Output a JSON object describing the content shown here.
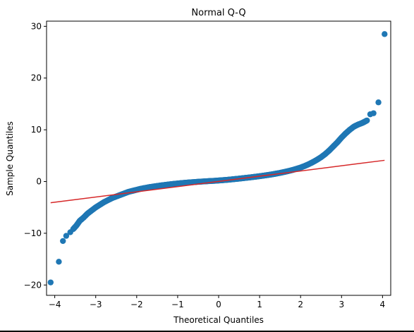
{
  "chart_data": {
    "type": "scatter",
    "title": "Normal Q-Q",
    "xlabel": "Theoretical Quantiles",
    "ylabel": "Sample Quantiles",
    "xlim": [
      -4.2,
      4.2
    ],
    "ylim": [
      -22,
      31
    ],
    "xticks": [
      -4,
      -3,
      -2,
      -1,
      0,
      1,
      2,
      3,
      4
    ],
    "yticks": [
      -20,
      -10,
      0,
      10,
      20,
      30
    ],
    "xtick_labels": [
      "−4",
      "−3",
      "−2",
      "−1",
      "0",
      "1",
      "2",
      "3",
      "4"
    ],
    "ytick_labels": [
      "−20",
      "−10",
      "0",
      "10",
      "20",
      "30"
    ],
    "grid": false,
    "colors": {
      "points": "#1f77b4",
      "line": "#d62728"
    },
    "reference_line": {
      "x": [
        -4.1,
        4.05
      ],
      "y": [
        -4.1,
        4.1
      ]
    },
    "series": [
      {
        "x": [
          -4.1,
          -3.9,
          -3.8,
          -3.72,
          -3.62,
          -3.55,
          -3.47,
          -3.39,
          -3.3,
          -3.2,
          -3.1,
          -3.0,
          -2.9,
          -2.8,
          -2.7,
          -2.6,
          -2.5,
          -2.4,
          -2.3,
          -2.2,
          -2.1,
          -2.0,
          -1.9,
          -1.8,
          -1.7,
          -1.6,
          -1.5,
          -1.4,
          -1.3,
          -1.2,
          -1.1,
          -1.0,
          -0.9,
          -0.8,
          -0.7,
          -0.6,
          -0.5,
          -0.4,
          -0.3,
          -0.2,
          -0.1,
          0.0,
          0.1,
          0.2,
          0.3,
          0.4,
          0.5,
          0.6,
          0.7,
          0.8,
          0.9,
          1.0,
          1.1,
          1.2,
          1.3,
          1.4,
          1.5,
          1.6,
          1.7,
          1.8,
          1.9,
          2.0,
          2.1,
          2.2,
          2.3,
          2.4,
          2.5,
          2.6,
          2.7,
          2.8,
          2.9,
          3.0,
          3.1,
          3.2,
          3.3,
          3.4,
          3.5,
          3.55,
          3.62,
          3.7,
          3.78,
          3.9,
          4.05
        ],
        "y": [
          -19.5,
          -15.5,
          -11.5,
          -10.5,
          -9.8,
          -9.2,
          -8.5,
          -7.6,
          -7.0,
          -6.2,
          -5.6,
          -5.0,
          -4.5,
          -4.0,
          -3.6,
          -3.2,
          -2.9,
          -2.6,
          -2.3,
          -2.0,
          -1.8,
          -1.6,
          -1.4,
          -1.25,
          -1.1,
          -0.98,
          -0.86,
          -0.75,
          -0.65,
          -0.55,
          -0.46,
          -0.38,
          -0.3,
          -0.23,
          -0.17,
          -0.11,
          -0.05,
          0.0,
          0.05,
          0.1,
          0.14,
          0.2,
          0.26,
          0.32,
          0.4,
          0.48,
          0.56,
          0.65,
          0.74,
          0.83,
          0.93,
          1.03,
          1.14,
          1.26,
          1.38,
          1.52,
          1.67,
          1.84,
          2.02,
          2.22,
          2.45,
          2.7,
          3.0,
          3.35,
          3.75,
          4.2,
          4.7,
          5.3,
          6.0,
          6.8,
          7.6,
          8.5,
          9.3,
          10.0,
          10.6,
          11.0,
          11.3,
          11.5,
          11.8,
          13.0,
          13.2,
          15.3,
          28.5
        ]
      }
    ]
  }
}
